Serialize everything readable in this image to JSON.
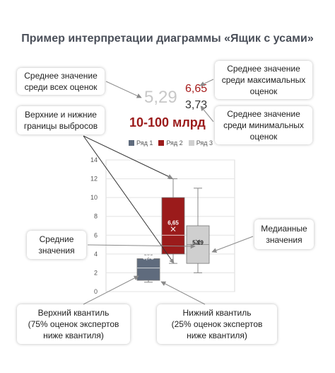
{
  "title": "Пример интерпретации диаграммы «Ящик с усами»",
  "highlights": {
    "mean": "5,29",
    "max": "6,65",
    "min": "3,73",
    "range": "10-100 млрд"
  },
  "callouts": {
    "mean_all": "Среднее значение\nсреди всех оценок",
    "mean_max": "Среднее значение\nсреди максимальных\nоценок",
    "outliers": "Верхние и нижние\nграницы выбросов",
    "mean_min": "Среднее значение\nсреди минимальных\nоценок",
    "means": "Средние\nзначения",
    "median": "Медианные\nзначения",
    "upper_q": "Верхний квантиль\n(75% оценок экспертов\nниже квантиля)",
    "lower_q": "Нижний квантиль\n(25% оценок экспертов\nниже квантиля)"
  },
  "colors": {
    "series1": "#5f6b7d",
    "series2": "#9b1b1b",
    "series3": "#cfcfcf",
    "arrow": "#8a8a8a"
  },
  "chart_data": {
    "type": "box",
    "ylim": [
      0,
      14
    ],
    "y_ticks": [
      0,
      2,
      4,
      6,
      8,
      10,
      12,
      14
    ],
    "grid": true,
    "legend_position": "top",
    "series": [
      {
        "name": "Ряд 1",
        "min": 1,
        "q1": 1.2,
        "median": 2.5,
        "q3": 3.5,
        "max": 3.9,
        "mean": 3.73,
        "mean_label": "3,73"
      },
      {
        "name": "Ряд 2",
        "min": 3,
        "q1": 4,
        "median": 6,
        "q3": 10,
        "max": 12,
        "mean": 6.65,
        "mean_label": "6,65"
      },
      {
        "name": "Ряд 3",
        "min": 2,
        "q1": 3,
        "median": 5,
        "q3": 7,
        "max": 11,
        "mean": 5.29,
        "mean_label": "5.29"
      }
    ]
  }
}
